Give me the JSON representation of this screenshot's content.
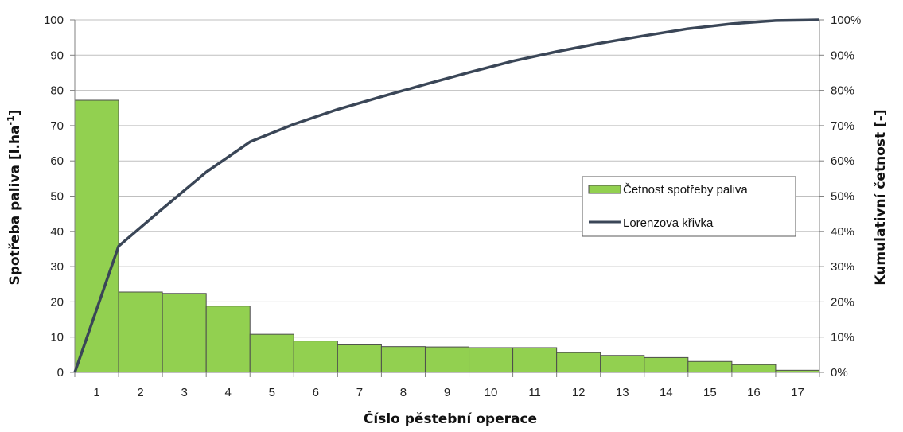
{
  "chart_data": {
    "type": "bar",
    "categories": [
      "1",
      "2",
      "3",
      "4",
      "5",
      "6",
      "7",
      "8",
      "9",
      "10",
      "11",
      "12",
      "13",
      "14",
      "15",
      "16",
      "17"
    ],
    "series": [
      {
        "name": "Četnost spotřeby paliva",
        "type": "bar",
        "axis": "left",
        "color": "#92d050",
        "values": [
          77.2,
          22.8,
          22.4,
          18.8,
          10.8,
          8.9,
          7.8,
          7.3,
          7.2,
          7.0,
          7.0,
          5.6,
          4.8,
          4.2,
          3.1,
          2.2,
          0.6
        ]
      },
      {
        "name": "Lorenzova křivka",
        "type": "line",
        "axis": "right",
        "color": "#3a4657",
        "x": [
          0.5,
          1.5,
          2.5,
          3.5,
          4.5,
          5.5,
          6.5,
          7.5,
          8.5,
          9.5,
          10.5,
          11.5,
          12.5,
          13.5,
          14.5,
          15.5,
          16.5,
          17.5
        ],
        "values": [
          0,
          35.8,
          46.4,
          56.8,
          65.4,
          70.4,
          74.6,
          78.2,
          81.7,
          85.1,
          88.3,
          91.0,
          93.4,
          95.5,
          97.5,
          98.9,
          99.8,
          100
        ]
      }
    ],
    "xlabel": "Číslo pěstební operace",
    "ylabel_main": "Spotřeba paliva [l.ha",
    "ylabel_sup": "-1",
    "ylabel_end": "]",
    "y2label": "Kumulativní četnost [-]",
    "ylim": [
      0,
      100
    ],
    "y2lim": [
      0,
      100
    ],
    "yticks": [
      "0",
      "10",
      "20",
      "30",
      "40",
      "50",
      "60",
      "70",
      "80",
      "90",
      "100"
    ],
    "y2ticks": [
      "0%",
      "10%",
      "20%",
      "30%",
      "40%",
      "50%",
      "60%",
      "70%",
      "80%",
      "90%",
      "100%"
    ],
    "grid": true,
    "legend_position": "right-middle",
    "colors": {
      "bar_fill": "#92d050",
      "bar_stroke": "#4d4d4d",
      "line": "#3a4657",
      "grid": "#bfbfbf",
      "axis": "#808080"
    }
  }
}
